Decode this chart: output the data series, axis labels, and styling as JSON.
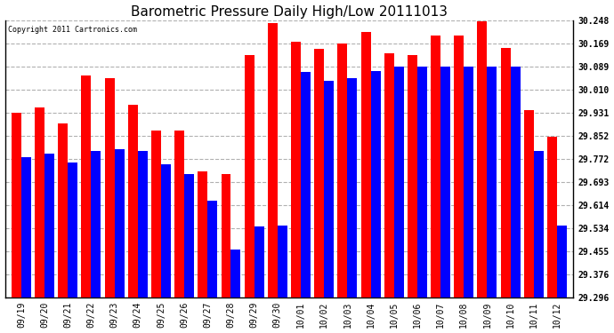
{
  "title": "Barometric Pressure Daily High/Low 20111013",
  "copyright": "Copyright 2011 Cartronics.com",
  "categories": [
    "09/19",
    "09/20",
    "09/21",
    "09/22",
    "09/23",
    "09/24",
    "09/25",
    "09/26",
    "09/27",
    "09/28",
    "09/29",
    "09/30",
    "10/01",
    "10/02",
    "10/03",
    "10/04",
    "10/05",
    "10/06",
    "10/07",
    "10/08",
    "10/09",
    "10/10",
    "10/11",
    "10/12"
  ],
  "highs": [
    29.93,
    29.95,
    29.895,
    30.06,
    30.05,
    29.96,
    29.87,
    29.87,
    29.73,
    29.72,
    30.13,
    30.24,
    30.175,
    30.15,
    30.17,
    30.21,
    30.135,
    30.13,
    30.195,
    30.195,
    30.245,
    30.155,
    29.94,
    29.85
  ],
  "lows": [
    29.78,
    29.79,
    29.76,
    29.8,
    29.805,
    29.8,
    29.755,
    29.72,
    29.63,
    29.46,
    29.54,
    29.545,
    30.07,
    30.04,
    30.05,
    30.075,
    30.09,
    30.09,
    30.09,
    30.09,
    30.09,
    30.09,
    29.8,
    29.545
  ],
  "ymin": 29.296,
  "ymax": 30.248,
  "yticks": [
    29.296,
    29.376,
    29.455,
    29.534,
    29.614,
    29.693,
    29.772,
    29.852,
    29.931,
    30.01,
    30.089,
    30.169,
    30.248
  ],
  "high_color": "#ff0000",
  "low_color": "#0000ff",
  "bg_color": "#ffffff",
  "grid_color": "#b0b0b0",
  "bar_width": 0.42,
  "title_fontsize": 11,
  "tick_fontsize": 7,
  "xlabel_fontsize": 7,
  "ylabel_fontsize": 7
}
